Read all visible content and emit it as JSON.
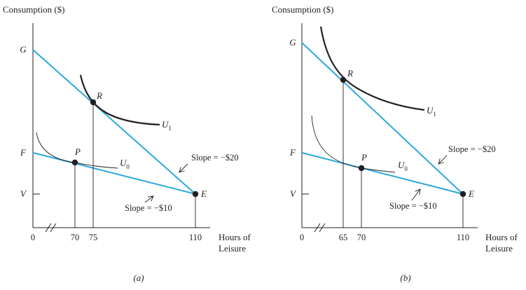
{
  "panels": [
    {
      "id": "a",
      "y_axis_title": "Consumption ($)",
      "x_axis_title_line1": "Hours of",
      "x_axis_title_line2": "Leisure",
      "panel_label": "(a)",
      "y_labels": {
        "G": "G",
        "F": "F",
        "V": "V"
      },
      "x_ticks": [
        "0",
        "70",
        "75",
        "110"
      ],
      "points": {
        "R": "R",
        "P": "P",
        "E": "E"
      },
      "curves": {
        "high": "U",
        "high_sub": "1",
        "low": "U",
        "low_sub": "0"
      },
      "annotations": {
        "steep": "Slope = −$20",
        "flat": "Slope = −$10"
      }
    },
    {
      "id": "b",
      "y_axis_title": "Consumption ($)",
      "x_axis_title_line1": "Hours of",
      "x_axis_title_line2": "Leisure",
      "panel_label": "(b)",
      "y_labels": {
        "G": "G",
        "F": "F",
        "V": "V"
      },
      "x_ticks": [
        "0",
        "65",
        "70",
        "110"
      ],
      "points": {
        "R": "R",
        "P": "P",
        "E": "E"
      },
      "curves": {
        "high": "U",
        "high_sub": "1",
        "low": "U",
        "low_sub": "0"
      },
      "annotations": {
        "steep": "Slope = −$20",
        "flat": "Slope = −$10"
      }
    }
  ],
  "colors": {
    "budget_line": "#2aa8de",
    "ink": "#231f20"
  }
}
